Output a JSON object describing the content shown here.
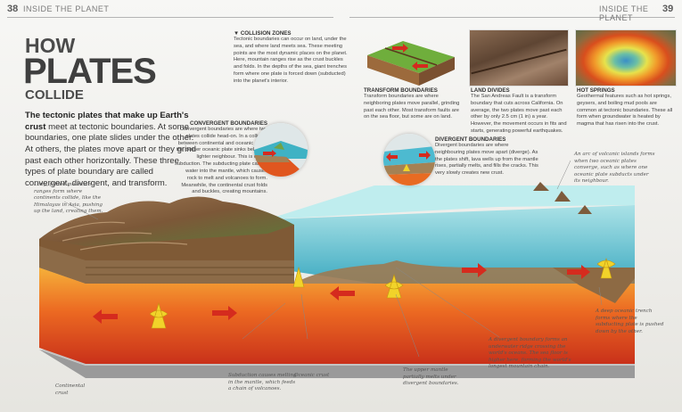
{
  "header": {
    "left_page": "38",
    "left_section": "INSIDE THE PLANET",
    "right_section": "INSIDE THE PLANET",
    "right_page": "39"
  },
  "title": {
    "line1": "HOW",
    "line2": "PLATES",
    "line3": "COLLIDE"
  },
  "intro": {
    "bold": "The tectonic plates that make up Earth's crust",
    "rest": " meet at tectonic boundaries. At some boundaries, one plate slides under the other. At others, the plates move apart or they grind past each other horizontally. These three types of plate boundary are called convergent, divergent, and transform."
  },
  "collision": {
    "heading": "▼ COLLISION ZONES",
    "text": "Tectonic boundaries can occur on land, under the sea, and where land meets sea. These meeting points are the most dynamic places on the planet. Here, mountain ranges rise as the crust buckles and folds. In the depths of the sea, giant trenches form where one plate is forced down (subducted) into the planet's interior."
  },
  "transform": {
    "heading": "TRANSFORM BOUNDARIES",
    "text": "Transform boundaries are where neighboring plates move parallel, grinding past each other. Most transform faults are on the sea floor, but some are on land."
  },
  "land_divides": {
    "heading": "LAND DIVIDES",
    "text": "The San Andreas Fault is a transform boundary that cuts across California. On average, the two plates move past each other by only 2.5 cm (1 in) a year. However, the movement occurs in fits and starts, generating powerful earthquakes."
  },
  "hot_springs": {
    "heading": "HOT SPRINGS",
    "text": "Geothermal features such as hot springs, geysers, and boiling mud pools are common at tectonic boundaries. These all form when groundwater is heated by magma that has risen into the crust."
  },
  "convergent": {
    "heading": "CONVERGENT BOUNDARIES",
    "text": "Convergent boundaries are where two plates collide head-on. In a collision between continental and oceanic crust, the denser oceanic plate sinks below its lighter neighbour. This is called subduction. The subducting plate carries water into the mantle, which causes rock to melt and volcanoes to form. Meanwhile, the continental crust folds and buckles, creating mountains."
  },
  "divergent": {
    "heading": "DIVERGENT BOUNDARIES",
    "text": "Divergent boundaries are where neighbouring plates move apart (diverge). As the plates shift, lava wells up from the mantle rises, partially melts, and fills the cracks. This very slowly creates new crust."
  },
  "notes": {
    "left": "Long, folded mountain ranges form where continents collide, like the Himalayas in Asia, pushing up the land, creating them.",
    "right_top": "An arc of volcanic islands forms when two oceanic plates converge, such as where one oceanic plate subducts under its neighbour.",
    "right_bottom": "A deep oceanic trench forms where the subducting plate is pushed down by the other.",
    "b_magma": "Subduction causes melting in the mantle, which feeds a chain of volcanoes.",
    "b_oceanic": "Oceanic crust",
    "b_upwell": "The upper mantle partially melts under divergent boundaries.",
    "b_ridge": "A divergent boundary forms an underwater ridge crossing the world's oceans. The sea floor is higher here, forming the world's longest mountain chain.",
    "b_cont": "Continental crust"
  },
  "icons": [
    "arrow-icon",
    "magma-plume-icon",
    "volcano-icon"
  ],
  "colors": {
    "magma": "#e2461e",
    "mantle": "#f0a22f",
    "ocean": "#5ec4d2",
    "crust": "#8a5a35",
    "arrows": "#d52b1e"
  }
}
